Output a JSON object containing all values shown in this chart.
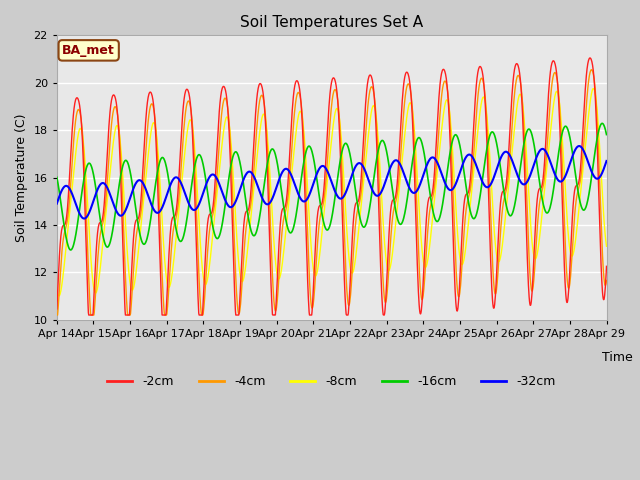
{
  "title": "Soil Temperatures Set A",
  "xlabel": "Time",
  "ylabel": "Soil Temperature (C)",
  "ylim": [
    10,
    22
  ],
  "yticks": [
    10,
    12,
    14,
    16,
    18,
    20,
    22
  ],
  "annotation": "BA_met",
  "fig_bg_color": "#cccccc",
  "plot_bg_color": "#e8e8e8",
  "colors": {
    "-2cm": "#ff2020",
    "-4cm": "#ff9900",
    "-8cm": "#ffff00",
    "-16cm": "#00cc00",
    "-32cm": "#0000ff"
  },
  "legend_labels": [
    "-2cm",
    "-4cm",
    "-8cm",
    "-16cm",
    "-32cm"
  ],
  "xticklabels": [
    "Apr 14",
    "Apr 15",
    "Apr 16",
    "Apr 17",
    "Apr 18",
    "Apr 19",
    "Apr 20",
    "Apr 21",
    "Apr 22",
    "Apr 23",
    "Apr 24",
    "Apr 25",
    "Apr 26",
    "Apr 27",
    "Apr 28",
    "Apr 29"
  ]
}
